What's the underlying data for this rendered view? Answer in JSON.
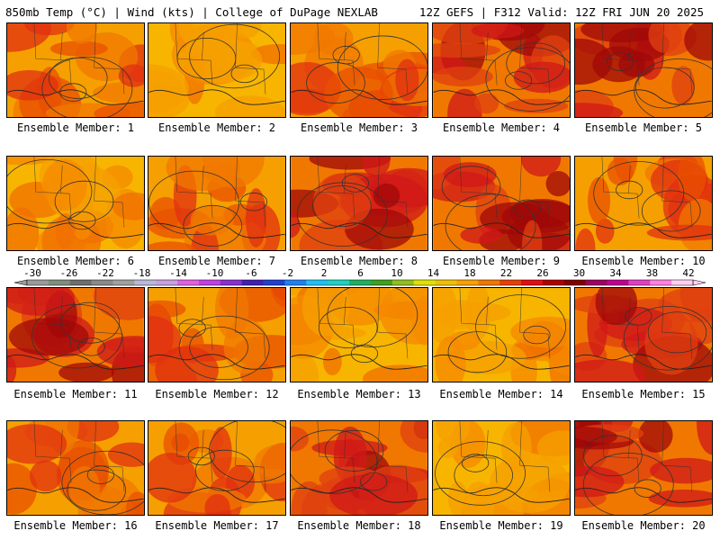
{
  "header": {
    "left_title": "850mb Temp (°C) | Wind (kts) | College of DuPage NEXLAB",
    "right_title": "12Z GEFS | F312 Valid: 12Z FRI JUN 20 2025"
  },
  "members": [
    {
      "label": "Ensemble Member: 1",
      "hot": 1
    },
    {
      "label": "Ensemble Member: 2",
      "hot": 0
    },
    {
      "label": "Ensemble Member: 3",
      "hot": 1
    },
    {
      "label": "Ensemble Member: 4",
      "hot": 2
    },
    {
      "label": "Ensemble Member: 5",
      "hot": 2
    },
    {
      "label": "Ensemble Member: 6",
      "hot": 0
    },
    {
      "label": "Ensemble Member: 7",
      "hot": 1
    },
    {
      "label": "Ensemble Member: 8",
      "hot": 2
    },
    {
      "label": "Ensemble Member: 9",
      "hot": 2
    },
    {
      "label": "Ensemble Member: 10",
      "hot": 1
    },
    {
      "label": "Ensemble Member: 11",
      "hot": 2
    },
    {
      "label": "Ensemble Member: 12",
      "hot": 1
    },
    {
      "label": "Ensemble Member: 13",
      "hot": 0
    },
    {
      "label": "Ensemble Member: 14",
      "hot": 0
    },
    {
      "label": "Ensemble Member: 15",
      "hot": 2
    },
    {
      "label": "Ensemble Member: 16",
      "hot": 1
    },
    {
      "label": "Ensemble Member: 17",
      "hot": 1
    },
    {
      "label": "Ensemble Member: 18",
      "hot": 2
    },
    {
      "label": "Ensemble Member: 19",
      "hot": 0
    },
    {
      "label": "Ensemble Member: 20",
      "hot": 2
    }
  ],
  "colorbar": {
    "tick_labels": [
      "-30",
      "-26",
      "-22",
      "-18",
      "-14",
      "-10",
      "-6",
      "-2",
      "2",
      "6",
      "10",
      "14",
      "18",
      "22",
      "26",
      "30",
      "34",
      "38",
      "42"
    ],
    "colors": [
      "#9a9a9a",
      "#7f8f7f",
      "#6e6e6e",
      "#8a8a8a",
      "#a0a0a0",
      "#b8b8d8",
      "#c8a0e0",
      "#e060e0",
      "#c040e0",
      "#8830d0",
      "#4020b0",
      "#2040d0",
      "#2080f0",
      "#20c0f0",
      "#20d0c0",
      "#20b060",
      "#40a020",
      "#90c020",
      "#e0e000",
      "#f0c000",
      "#f8a000",
      "#f07800",
      "#e84000",
      "#e01010",
      "#b00000",
      "#800000",
      "#a00060",
      "#c00090",
      "#e040c0",
      "#ff80e0",
      "#ffd0f0"
    ]
  }
}
